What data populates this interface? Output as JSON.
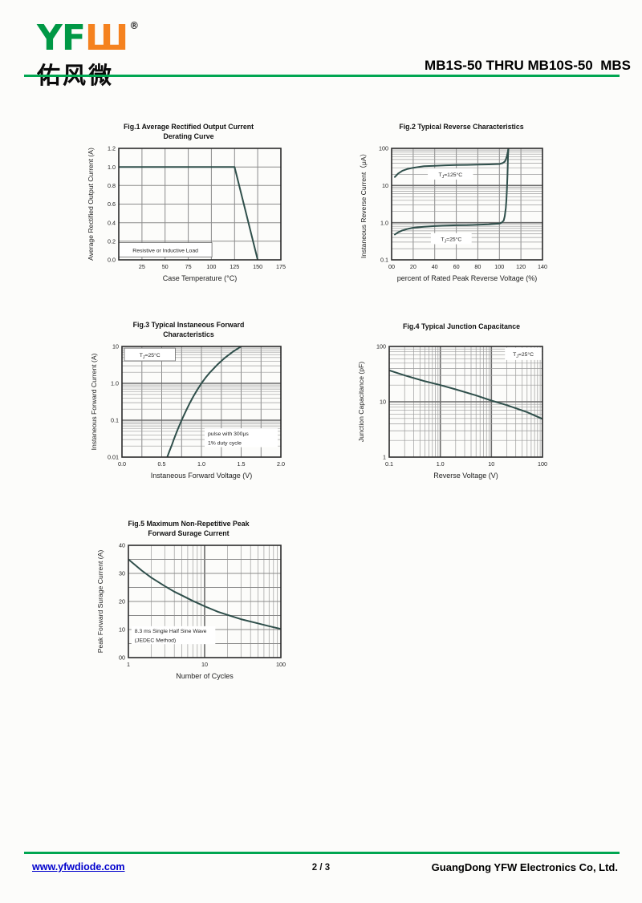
{
  "header": {
    "logo_yf": "YF",
    "logo_w": "Ш",
    "logo_registered": "®",
    "logo_cn": "佑风微",
    "title": "MB1S-50 THRU MB10S-50  MBS"
  },
  "footer": {
    "website": "www.yfwdiode.com",
    "page": "2 / 3",
    "company": "GuangDong YFW Electronics Co, Ltd."
  },
  "colors": {
    "accent_green": "#00a651",
    "logo_green": "#009845",
    "logo_orange": "#f5821f",
    "curve": "#2f4f4b",
    "link_blue": "#0000cc"
  },
  "chart_data": [
    {
      "id": "fig1",
      "type": "line",
      "title_lines": [
        "Fig.1  Average Rectified Output Current",
        "Derating Curve"
      ],
      "xlabel": "Case Temperature (°C)",
      "ylabel": "Average Rectified Output Current (A)",
      "xscale": "linear",
      "yscale": "linear",
      "xlim": [
        0,
        175
      ],
      "ylim": [
        0,
        1.2
      ],
      "grid": "on",
      "xgrid": [
        25,
        50,
        75,
        100,
        125,
        150
      ],
      "ygrid": [
        0.2,
        0.4,
        0.6,
        0.8,
        1.0
      ],
      "xticks": [
        {
          "v": 25,
          "t": "25"
        },
        {
          "v": 50,
          "t": "50"
        },
        {
          "v": 75,
          "t": "75"
        },
        {
          "v": 100,
          "t": "100"
        },
        {
          "v": 125,
          "t": "125"
        },
        {
          "v": 150,
          "t": "150"
        },
        {
          "v": 175,
          "t": "175"
        }
      ],
      "yticks": [
        {
          "v": 0,
          "t": "0.0"
        },
        {
          "v": 0.2,
          "t": "0.2"
        },
        {
          "v": 0.4,
          "t": "0.4"
        },
        {
          "v": 0.6,
          "t": "0.6"
        },
        {
          "v": 0.8,
          "t": "0.8"
        },
        {
          "v": 1.0,
          "t": "1.0"
        },
        {
          "v": 1.2,
          "t": "1.2"
        }
      ],
      "series": [
        {
          "name": "Derating curve",
          "points": [
            [
              0,
              1.0
            ],
            [
              125,
              1.0
            ],
            [
              150,
              0.0
            ]
          ]
        }
      ],
      "annotations": [
        {
          "fx": 0.0,
          "fy": 0.845,
          "w": 0.575,
          "h": 0.13,
          "border": true,
          "align": "center",
          "lines": [
            "Resistive or Inductive Load"
          ]
        }
      ]
    },
    {
      "id": "fig2",
      "type": "line",
      "title_lines": [
        "Fig.2  Typical Reverse Characteristics"
      ],
      "xlabel": "percent of Rated  Peak Reverse Voltage (%)",
      "ylabel": "Instaneous Reverse Current（μA）",
      "xscale": "linear",
      "yscale": "log",
      "xlim": [
        0,
        140
      ],
      "ylim": [
        0.1,
        100
      ],
      "grid": "on",
      "xgrid": [
        20,
        40,
        60,
        80,
        100,
        120
      ],
      "xticks": [
        {
          "v": 0,
          "t": "00"
        },
        {
          "v": 20,
          "t": "20"
        },
        {
          "v": 40,
          "t": "40"
        },
        {
          "v": 60,
          "t": "60"
        },
        {
          "v": 80,
          "t": "80"
        },
        {
          "v": 100,
          "t": "100"
        },
        {
          "v": 120,
          "t": "120"
        },
        {
          "v": 140,
          "t": "140"
        }
      ],
      "yticks": [
        {
          "v": 100,
          "t": "100"
        },
        {
          "v": 10,
          "t": "10"
        },
        {
          "v": 1,
          "t": "1.0"
        },
        {
          "v": 0.1,
          "t": "0.1"
        }
      ],
      "series": [
        {
          "name": "TJ=125°C",
          "points": [
            [
              3,
              17
            ],
            [
              6,
              21
            ],
            [
              10,
              25
            ],
            [
              15,
              28
            ],
            [
              20,
              30
            ],
            [
              30,
              33
            ],
            [
              40,
              34
            ],
            [
              50,
              35
            ],
            [
              60,
              35.5
            ],
            [
              70,
              36
            ],
            [
              80,
              36.5
            ],
            [
              90,
              37
            ],
            [
              100,
              38
            ],
            [
              103,
              40
            ],
            [
              105,
              44
            ],
            [
              106,
              50
            ],
            [
              107,
              62
            ],
            [
              108,
              85
            ],
            [
              108.5,
              110
            ],
            [
              109,
              130
            ]
          ]
        },
        {
          "name": "TJ=25°C",
          "points": [
            [
              3,
              0.48
            ],
            [
              6,
              0.55
            ],
            [
              10,
              0.62
            ],
            [
              15,
              0.68
            ],
            [
              20,
              0.73
            ],
            [
              30,
              0.78
            ],
            [
              40,
              0.81
            ],
            [
              50,
              0.83
            ],
            [
              60,
              0.85
            ],
            [
              70,
              0.86
            ],
            [
              80,
              0.88
            ],
            [
              90,
              0.9
            ],
            [
              100,
              0.95
            ],
            [
              102,
              1.0
            ],
            [
              104,
              1.15
            ],
            [
              105,
              1.5
            ],
            [
              106,
              2.5
            ],
            [
              106.5,
              4
            ],
            [
              107,
              8
            ],
            [
              107.5,
              20
            ],
            [
              108,
              60
            ],
            [
              108.5,
              110
            ],
            [
              109,
              130
            ]
          ]
        }
      ],
      "annotations": [
        {
          "fx": 0.24,
          "fy": 0.18,
          "w": 0.3,
          "h": 0.1,
          "border": false,
          "align": "center",
          "lines": [
            "T[J]=125°C"
          ]
        },
        {
          "fx": 0.26,
          "fy": 0.76,
          "w": 0.27,
          "h": 0.1,
          "border": false,
          "align": "center",
          "lines": [
            "T[J]=25°C"
          ]
        }
      ]
    },
    {
      "id": "fig3",
      "type": "line",
      "title_lines": [
        "Fig.3  Typical Instaneous Forward",
        "Characteristics"
      ],
      "xlabel": "Instaneous Forward Voltage (V)",
      "ylabel": "Instaneous Forward Current (A)",
      "xscale": "linear",
      "yscale": "log",
      "xlim": [
        0,
        2.0
      ],
      "ylim": [
        0.01,
        10
      ],
      "grid": "on",
      "xgrid": [
        0.25,
        0.5,
        0.75,
        1.0,
        1.25,
        1.5,
        1.75
      ],
      "xticks": [
        {
          "v": 0,
          "t": "0.0"
        },
        {
          "v": 0.5,
          "t": "0.5"
        },
        {
          "v": 1.0,
          "t": "1.0"
        },
        {
          "v": 1.5,
          "t": "1.5"
        },
        {
          "v": 2.0,
          "t": "2.0"
        }
      ],
      "yticks": [
        {
          "v": 10,
          "t": "10"
        },
        {
          "v": 1,
          "t": "1.0"
        },
        {
          "v": 0.1,
          "t": "0.1"
        },
        {
          "v": 0.01,
          "t": "0.01"
        }
      ],
      "series": [
        {
          "name": "Forward characteristic",
          "points": [
            [
              0.57,
              0.01
            ],
            [
              0.6,
              0.015
            ],
            [
              0.63,
              0.022
            ],
            [
              0.66,
              0.033
            ],
            [
              0.7,
              0.055
            ],
            [
              0.75,
              0.1
            ],
            [
              0.8,
              0.17
            ],
            [
              0.85,
              0.28
            ],
            [
              0.9,
              0.45
            ],
            [
              0.95,
              0.68
            ],
            [
              1.0,
              1.0
            ],
            [
              1.05,
              1.4
            ],
            [
              1.1,
              1.9
            ],
            [
              1.2,
              3.2
            ],
            [
              1.3,
              5.0
            ],
            [
              1.4,
              7.3
            ],
            [
              1.5,
              10
            ]
          ]
        }
      ],
      "annotations": [
        {
          "fx": 0.015,
          "fy": 0.015,
          "w": 0.32,
          "h": 0.115,
          "border": true,
          "align": "center",
          "lines": [
            "T[J]=25°C"
          ]
        },
        {
          "fx": 0.52,
          "fy": 0.74,
          "w": 0.46,
          "h": 0.17,
          "border": false,
          "align": "left",
          "lines": [
            "pulse with 300μs",
            "1% duty cycle"
          ]
        }
      ]
    },
    {
      "id": "fig4",
      "type": "line",
      "title_lines": [
        "Fig.4  Typical Junction Capacitance"
      ],
      "xlabel": "Reverse  Voltage (V)",
      "ylabel": "Junction Capacitance (pF)",
      "xscale": "log",
      "yscale": "log",
      "xlim": [
        0.1,
        100
      ],
      "ylim": [
        1,
        100
      ],
      "grid": "on",
      "xticks": [
        {
          "v": 0.1,
          "t": "0.1"
        },
        {
          "v": 1,
          "t": "1.0"
        },
        {
          "v": 10,
          "t": "10"
        },
        {
          "v": 100,
          "t": "100"
        }
      ],
      "yticks": [
        {
          "v": 100,
          "t": "100"
        },
        {
          "v": 10,
          "t": "10"
        },
        {
          "v": 1,
          "t": "1"
        }
      ],
      "series": [
        {
          "name": "Junction capacitance",
          "points": [
            [
              0.1,
              37
            ],
            [
              0.2,
              30
            ],
            [
              0.5,
              23.5
            ],
            [
              1,
              20
            ],
            [
              2,
              16.8
            ],
            [
              5,
              13
            ],
            [
              10,
              10.5
            ],
            [
              20,
              8.7
            ],
            [
              50,
              6.5
            ],
            [
              100,
              4.9
            ]
          ]
        }
      ],
      "annotations": [
        {
          "fx": 0.755,
          "fy": 0.012,
          "w": 0.24,
          "h": 0.11,
          "border": false,
          "align": "center",
          "lines": [
            "T[J]=25°C"
          ]
        }
      ]
    },
    {
      "id": "fig5",
      "type": "line",
      "title_lines": [
        "Fig.5  Maximum Non-Repetitive Peak",
        "Forward Surage Current"
      ],
      "xlabel": "Number of Cycles",
      "ylabel": "Peak Forward Surage Current (A)",
      "xscale": "log",
      "yscale": "linear",
      "xlim": [
        1,
        100
      ],
      "ylim": [
        0,
        40
      ],
      "grid": "on",
      "ygrid": [
        5,
        10,
        15,
        20,
        25,
        30,
        35
      ],
      "xticks": [
        {
          "v": 1,
          "t": "1"
        },
        {
          "v": 10,
          "t": "10"
        },
        {
          "v": 100,
          "t": "100"
        }
      ],
      "yticks": [
        {
          "v": 0,
          "t": "00"
        },
        {
          "v": 10,
          "t": "10"
        },
        {
          "v": 20,
          "t": "20"
        },
        {
          "v": 30,
          "t": "30"
        },
        {
          "v": 40,
          "t": "40"
        }
      ],
      "series": [
        {
          "name": "Surge current",
          "points": [
            [
              1,
              35
            ],
            [
              1.5,
              31
            ],
            [
              2,
              28.5
            ],
            [
              3,
              25.5
            ],
            [
              4,
              23.5
            ],
            [
              5,
              22.2
            ],
            [
              7,
              20.2
            ],
            [
              10,
              18.3
            ],
            [
              15,
              16.3
            ],
            [
              20,
              15.2
            ],
            [
              30,
              13.7
            ],
            [
              50,
              12.2
            ],
            [
              70,
              11.2
            ],
            [
              100,
              10.2
            ]
          ]
        }
      ],
      "annotations": [
        {
          "fx": 0.02,
          "fy": 0.72,
          "w": 0.55,
          "h": 0.16,
          "border": false,
          "align": "left",
          "lines": [
            "8.3 ms Single Half Sine Wave",
            "(JEDEC Method)"
          ]
        }
      ]
    }
  ]
}
